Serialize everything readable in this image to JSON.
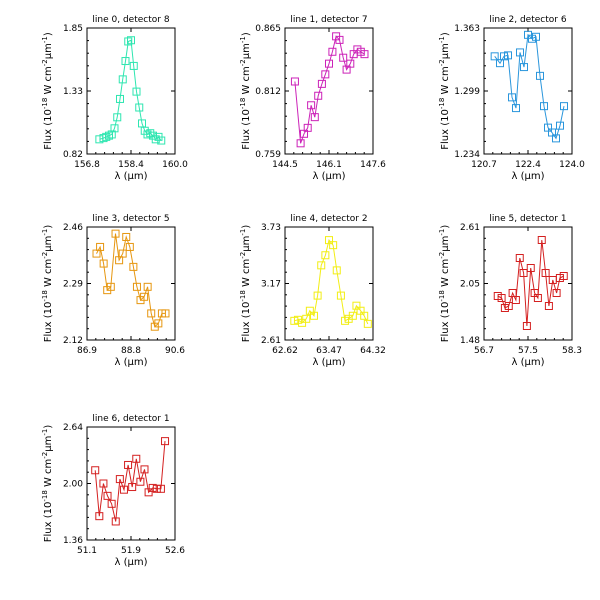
{
  "chart_data": [
    {
      "type": "line",
      "title": "line 0, detector 8",
      "color": "#2ee6b0",
      "xlim": [
        156.8,
        160.0
      ],
      "ylim": [
        0.82,
        1.85
      ],
      "xticks": [
        "156.8",
        "158.4",
        "160.0"
      ],
      "yticks": [
        "0.82",
        "1.33",
        "1.85"
      ],
      "xlabel": "λ (μm)",
      "ylabel": "Flux (10^-18 W cm^-2 μm^-1)",
      "x": [
        157.25,
        157.4,
        157.5,
        157.6,
        157.7,
        157.8,
        157.9,
        158.0,
        158.1,
        158.2,
        158.3,
        158.4,
        158.5,
        158.6,
        158.7,
        158.8,
        158.9,
        159.0,
        159.1,
        159.2,
        159.3,
        159.4,
        159.5
      ],
      "y": [
        0.94,
        0.95,
        0.96,
        0.97,
        0.98,
        1.03,
        1.12,
        1.27,
        1.43,
        1.58,
        1.74,
        1.75,
        1.54,
        1.33,
        1.2,
        1.07,
        1.01,
        0.98,
        0.99,
        0.97,
        0.94,
        0.96,
        0.93
      ]
    },
    {
      "type": "line",
      "title": "line 1, detector 7",
      "color": "#cc22b8",
      "xlim": [
        144.5,
        147.6
      ],
      "ylim": [
        0.759,
        0.865
      ],
      "xticks": [
        "144.5",
        "146.1",
        "147.6"
      ],
      "yticks": [
        "0.759",
        "0.812",
        "0.865"
      ],
      "xlabel": "λ (μm)",
      "ylabel": "Flux (10^-18 W cm^-2 μm^-1)",
      "x": [
        144.85,
        145.05,
        145.17,
        145.3,
        145.42,
        145.55,
        145.67,
        145.8,
        145.92,
        146.05,
        146.17,
        146.3,
        146.42,
        146.55,
        146.67,
        146.8,
        146.92,
        147.05,
        147.17,
        147.3
      ],
      "y": [
        0.82,
        0.768,
        0.776,
        0.781,
        0.8,
        0.79,
        0.808,
        0.818,
        0.826,
        0.835,
        0.845,
        0.858,
        0.855,
        0.84,
        0.83,
        0.835,
        0.843,
        0.847,
        0.845,
        0.843
      ]
    },
    {
      "type": "line",
      "title": "line 2, detector 6",
      "color": "#2a96dc",
      "xlim": [
        120.7,
        124.0
      ],
      "ylim": [
        1.234,
        1.363
      ],
      "xticks": [
        "120.7",
        "122.4",
        "124.0"
      ],
      "yticks": [
        "1.234",
        "1.299",
        "1.363"
      ],
      "xlabel": "λ (μm)",
      "ylabel": "Flux (10^-18 W cm^-2 μm^-1)",
      "x": [
        121.1,
        121.3,
        121.45,
        121.6,
        121.75,
        121.9,
        122.05,
        122.2,
        122.35,
        122.5,
        122.65,
        122.8,
        122.95,
        123.1,
        123.25,
        123.4,
        123.55,
        123.7
      ],
      "y": [
        1.334,
        1.327,
        1.334,
        1.335,
        1.292,
        1.281,
        1.338,
        1.323,
        1.356,
        1.352,
        1.354,
        1.314,
        1.283,
        1.261,
        1.256,
        1.25,
        1.263,
        1.283
      ]
    },
    {
      "type": "line",
      "title": "line 3, detector 5",
      "color": "#e6960f",
      "xlim": [
        86.9,
        90.6
      ],
      "ylim": [
        2.12,
        2.46
      ],
      "xticks": [
        "86.9",
        "88.8",
        "90.6"
      ],
      "yticks": [
        "2.12",
        "2.29",
        "2.46"
      ],
      "xlabel": "λ (μm)",
      "ylabel": "Flux (10^-18 W cm^-2 μm^-1)",
      "x": [
        87.3,
        87.45,
        87.6,
        87.75,
        87.9,
        88.1,
        88.25,
        88.4,
        88.55,
        88.7,
        88.85,
        89.0,
        89.15,
        89.3,
        89.45,
        89.6,
        89.75,
        89.9,
        90.05,
        90.2
      ],
      "y": [
        2.38,
        2.4,
        2.35,
        2.27,
        2.28,
        2.44,
        2.36,
        2.38,
        2.43,
        2.4,
        2.34,
        2.28,
        2.24,
        2.25,
        2.28,
        2.2,
        2.16,
        2.17,
        2.2,
        2.2
      ]
    },
    {
      "type": "line",
      "title": "line 4, detector 2",
      "color": "#f2ee14",
      "xlim": [
        62.62,
        64.32
      ],
      "ylim": [
        2.61,
        3.73
      ],
      "xticks": [
        "62.62",
        "63.47",
        "64.32"
      ],
      "yticks": [
        "2.61",
        "3.17",
        "3.73"
      ],
      "xlabel": "λ (μm)",
      "ylabel": "Flux (10^-18 W cm^-2 μm^-1)",
      "x": [
        62.8,
        62.87,
        62.95,
        63.03,
        63.1,
        63.18,
        63.25,
        63.32,
        63.4,
        63.47,
        63.55,
        63.62,
        63.7,
        63.78,
        63.85,
        63.93,
        64.0,
        64.08,
        64.15,
        64.22
      ],
      "y": [
        2.8,
        2.81,
        2.78,
        2.82,
        2.9,
        2.85,
        3.05,
        3.35,
        3.45,
        3.6,
        3.55,
        3.3,
        3.05,
        2.8,
        2.82,
        2.85,
        2.95,
        2.9,
        2.85,
        2.77
      ]
    },
    {
      "type": "line",
      "title": "line 5, detector 1",
      "color": "#d42020",
      "xlim": [
        56.7,
        58.3
      ],
      "ylim": [
        1.48,
        2.61
      ],
      "xticks": [
        "56.7",
        "57.5",
        "58.3"
      ],
      "yticks": [
        "1.48",
        "2.05",
        "2.61"
      ],
      "xlabel": "λ (μm)",
      "ylabel": "Flux (10^-18 W cm^-2 μm^-1)",
      "x": [
        56.95,
        57.02,
        57.08,
        57.15,
        57.22,
        57.28,
        57.35,
        57.42,
        57.48,
        57.55,
        57.62,
        57.68,
        57.75,
        57.82,
        57.88,
        57.95,
        58.02,
        58.08,
        58.15
      ],
      "y": [
        1.92,
        1.9,
        1.8,
        1.82,
        1.95,
        1.88,
        2.3,
        2.15,
        1.62,
        2.2,
        1.95,
        1.9,
        2.48,
        2.15,
        1.82,
        2.08,
        1.95,
        2.1,
        2.12
      ]
    },
    {
      "type": "line",
      "title": "line 6, detector 1",
      "color": "#d42020",
      "xlim": [
        51.1,
        52.6
      ],
      "ylim": [
        1.36,
        2.64
      ],
      "xticks": [
        "51.1",
        "51.9",
        "52.6"
      ],
      "yticks": [
        "1.36",
        "2.00",
        "2.64"
      ],
      "xlabel": "λ (μm)",
      "ylabel": "Flux (10^-18 W cm^-2 μm^-1)",
      "x": [
        51.24,
        51.31,
        51.38,
        51.45,
        51.52,
        51.59,
        51.66,
        51.73,
        51.8,
        51.87,
        51.94,
        52.01,
        52.08,
        52.15,
        52.22,
        52.29,
        52.36,
        52.43
      ],
      "y": [
        2.15,
        1.63,
        2.0,
        1.86,
        1.77,
        1.57,
        2.05,
        1.93,
        2.21,
        1.96,
        2.28,
        2.02,
        2.16,
        1.9,
        1.95,
        1.94,
        1.94,
        2.48
      ]
    }
  ]
}
